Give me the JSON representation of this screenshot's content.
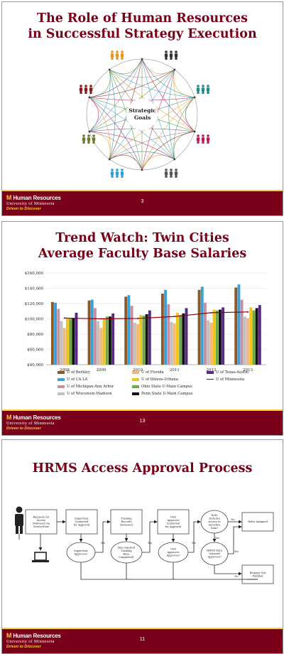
{
  "slides": [
    {
      "title_line1": "The Role of Human Resources",
      "title_line2": "in Successful Strategy Execution",
      "center_label_line1": "Strategic",
      "center_label_line2": "Goals",
      "page_number": "3",
      "people_colors": [
        "#e8921f",
        "#333333",
        "#1a8a8a",
        "#c2185b",
        "#555555",
        "#29a3d6",
        "#6b7d2a",
        "#8b1a1a"
      ]
    },
    {
      "title_line1": "Trend Watch: Twin Cities",
      "title_line2": "Average Faculty Base Salaries",
      "page_number": "13"
    },
    {
      "title": "HRMS Access Approval Process",
      "page_number": "11",
      "boxes": {
        "request": "Requests for Access Delivered via ServiceNow",
        "supervisor_contacted": "Supervisor Contacted for Approval",
        "training_reviewed": "Training Records Reviewed",
        "unit_contacted": "Unit Approver Contacted for Approval",
        "roles_assigned": "Roles Assigned",
        "not_fulfilled": "Request Not Fulfilled"
      },
      "decisions": {
        "supervisor_approves": "Supervisor Approves?",
        "training_completed": "Has required Training Been Completed?",
        "unit_approves": "Unit Approver Approves?",
        "sensitive_data": "Role Includes Access to Sensitive Data?",
        "steward_approves": "HRMS Data Steward Approves?"
      },
      "edge_labels": {
        "yes": "Yes",
        "no": "No"
      }
    }
  ],
  "footer": {
    "brand_m": "M",
    "brand_text": "Human Resources",
    "university": "University of Minnesota",
    "tagline": "Driven to Discover"
  },
  "chart_data": {
    "type": "bar",
    "categories": [
      "2008",
      "2009",
      "2010",
      "2011",
      "2012",
      "2013"
    ],
    "ylim": [
      40000,
      160000
    ],
    "yticks": [
      "$40,000",
      "$60,000",
      "$80,000",
      "$100,000",
      "$120,000",
      "$140,000",
      "$160,000"
    ],
    "series": [
      {
        "name": "U of Berkley",
        "color": "#8b5a2b",
        "values": [
          122000,
          124000,
          129000,
          133000,
          138000,
          141000
        ]
      },
      {
        "name": "U of CA LA",
        "color": "#3aa0d8",
        "values": [
          121000,
          125000,
          131000,
          138000,
          142000,
          145000
        ]
      },
      {
        "name": "U of Michigan-Ann Arbor",
        "color": "#c8909e",
        "values": [
          113000,
          114000,
          117000,
          119000,
          121000,
          125000
        ]
      },
      {
        "name": "U of Wisconsin-Madison",
        "color": "#c0c0c0",
        "values": [
          97000,
          97000,
          95000,
          96000,
          98000,
          103000
        ]
      },
      {
        "name": "U of Florida",
        "color": "#f2b77a",
        "values": [
          88000,
          88000,
          93000,
          94000,
          95000,
          101000
        ]
      },
      {
        "name": "U of Illinois-Urbana",
        "color": "#f0c419",
        "values": [
          101000,
          101000,
          105000,
          108000,
          112000,
          115000
        ]
      },
      {
        "name": "Ohio State U-Main Campus",
        "color": "#6ea84a",
        "values": [
          100000,
          103000,
          104000,
          105000,
          111000,
          111000
        ]
      },
      {
        "name": "Penn State U-Main Campus",
        "color": "#111111",
        "values": [
          101000,
          103000,
          106000,
          107000,
          112000,
          114000
        ]
      },
      {
        "name": "U of Texas-Austin",
        "color": "#5a2a82",
        "values": [
          108000,
          107000,
          111000,
          114000,
          115000,
          118000
        ]
      }
    ],
    "line_series": {
      "name": "U of Minnesota",
      "color": "#8b0000",
      "values": [
        101000,
        100000,
        100500,
        103000,
        108000,
        109000
      ]
    }
  }
}
